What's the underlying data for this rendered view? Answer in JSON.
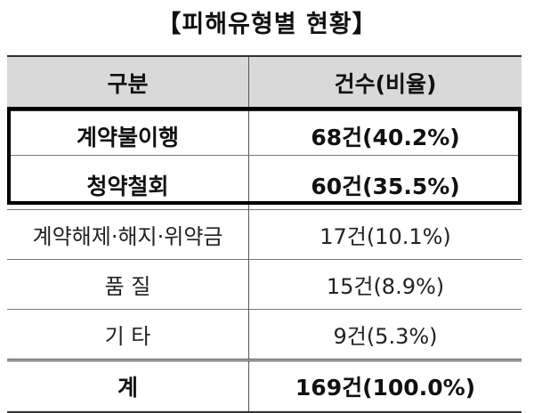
{
  "title": "【피해유형별  현황】",
  "table": {
    "headers": [
      "구분",
      "건수(비율)"
    ],
    "rows": [
      {
        "category": "계약불이행",
        "count": "68건(40.2%)"
      },
      {
        "category": "청약철회",
        "count": "60건(35.5%)"
      },
      {
        "category": "계약해제·해지·위약금",
        "count": "17건(10.1%)"
      },
      {
        "category": "품 질",
        "count": "15건(8.9%)"
      },
      {
        "category": "기 타",
        "count": "9건(5.3%)"
      }
    ],
    "total": {
      "category": "계",
      "count": "169건(100.0%)"
    }
  }
}
